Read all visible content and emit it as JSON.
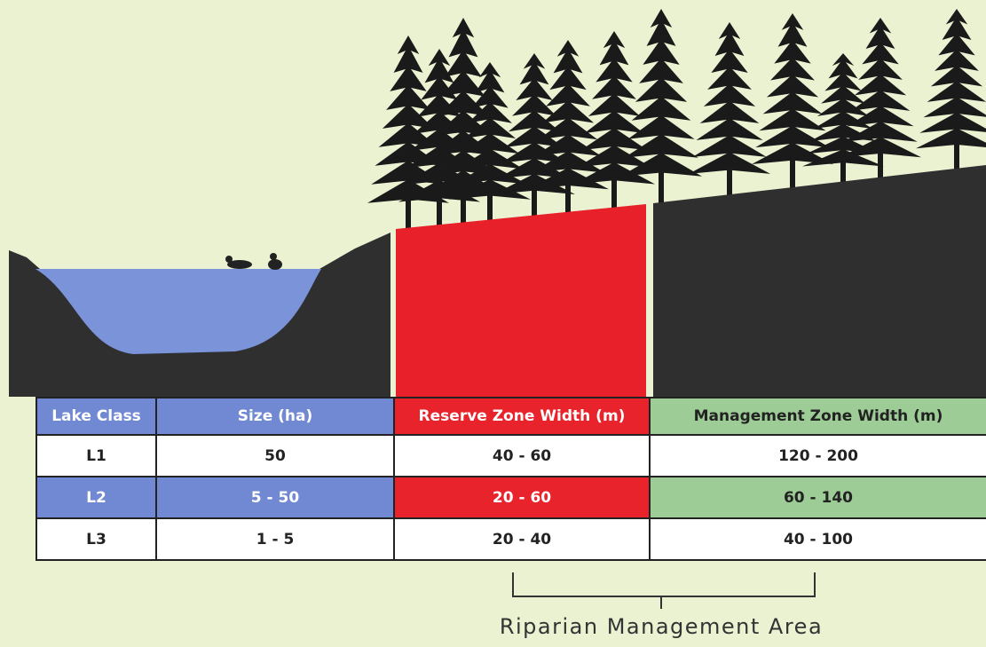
{
  "table": {
    "headers": [
      "Lake Class",
      "Size (ha)",
      "Reserve Zone Width (m)",
      "Management Zone Width (m)"
    ],
    "rows": [
      [
        "L1",
        "50",
        "40 - 60",
        "120 - 200"
      ],
      [
        "L2",
        "5 - 50",
        "20 - 60",
        "60 - 140"
      ],
      [
        "L3",
        "1 - 5",
        "20 - 40",
        "40 - 100"
      ]
    ]
  },
  "caption": "Riparian Management Area"
}
